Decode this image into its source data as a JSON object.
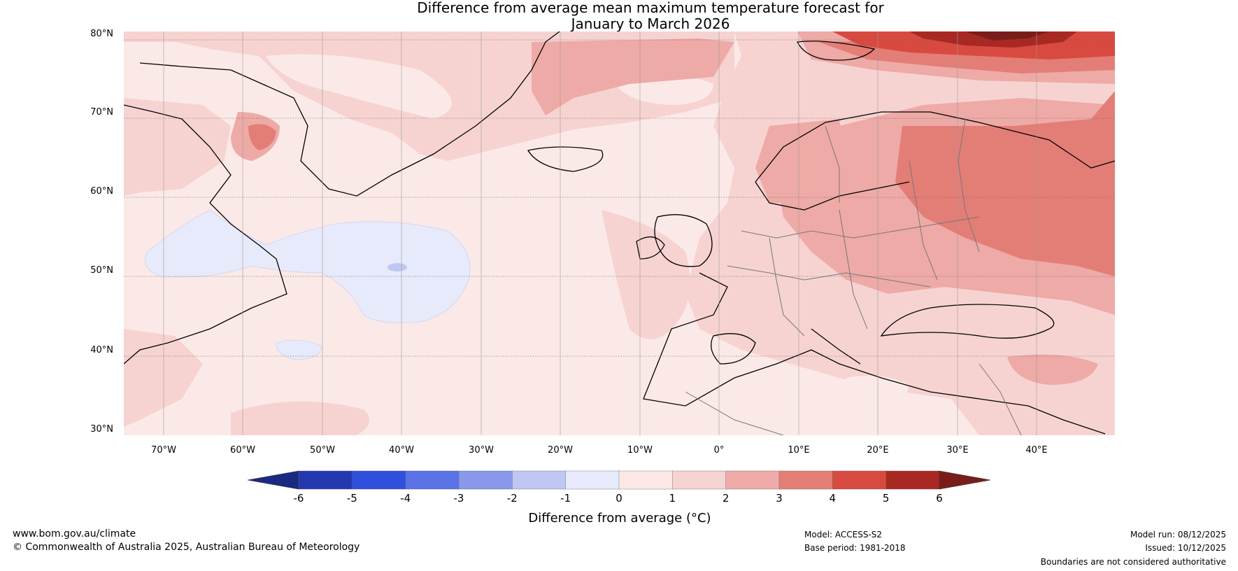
{
  "title_line1": "Difference from average mean maximum temperature forecast for",
  "title_line2": "January to March 2026",
  "lat_labels": [
    "80°N",
    "70°N",
    "60°N",
    "50°N",
    "40°N",
    "30°N"
  ],
  "lon_labels": [
    "70°W",
    "60°W",
    "50°W",
    "40°W",
    "30°W",
    "20°W",
    "10°W",
    "0°",
    "10°E",
    "20°E",
    "30°E",
    "40°E"
  ],
  "colorbar": {
    "label": "Difference from average (°C)",
    "ticks": [
      "-6",
      "-5",
      "-4",
      "-3",
      "-2",
      "-1",
      "0",
      "1",
      "2",
      "3",
      "4",
      "5",
      "6"
    ],
    "under_color": "#1a2a80",
    "over_color": "#7a1d1a",
    "colors": [
      "#2438b0",
      "#2f4fdc",
      "#5a72e6",
      "#8898ea",
      "#bfc8f2",
      "#e6eafb",
      "#fbe9e7",
      "#f6d3d1",
      "#eeaaa6",
      "#e37e77",
      "#d84a40",
      "#a92822"
    ]
  },
  "footer": {
    "website": "www.bom.gov.au/climate",
    "copyright": "© Commonwealth of Australia 2025, Australian Bureau of Meteorology",
    "model": "Model: ACCESS-S2",
    "base_period": "Base period: 1981-2018",
    "model_run": "Model run: 08/12/2025",
    "issued": "Issued: 10/12/2025",
    "disclaimer": "Boundaries are not considered authoritative"
  }
}
